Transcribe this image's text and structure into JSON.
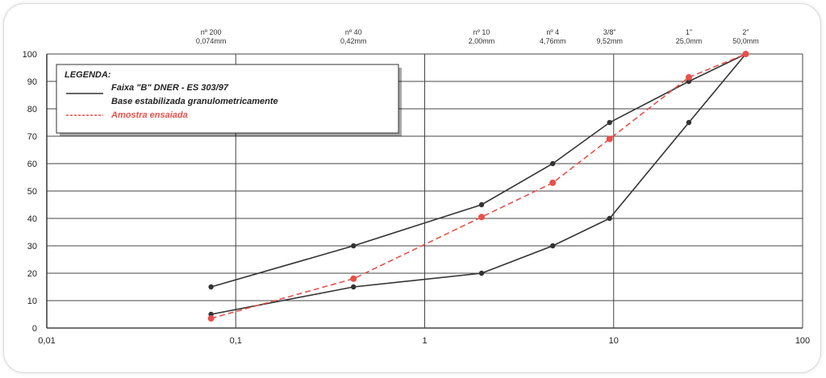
{
  "chart_data": {
    "type": "line",
    "x_scale": "log",
    "xlim": [
      0.01,
      100
    ],
    "ylim": [
      0,
      100
    ],
    "grid": true,
    "legend_position": "top-left",
    "x_tick_labels": [
      "0,01",
      "0,1",
      "1",
      "10",
      "100"
    ],
    "x_tick_values": [
      0.01,
      0.1,
      1,
      10,
      100
    ],
    "y_ticks": [
      0,
      10,
      20,
      30,
      40,
      50,
      60,
      70,
      80,
      90,
      100
    ],
    "sieves": [
      {
        "x": 0.074,
        "line1": "nº 200",
        "line2": "0,074mm"
      },
      {
        "x": 0.42,
        "line1": "nº 40",
        "line2": "0,42mm"
      },
      {
        "x": 2.0,
        "line1": "nº 10",
        "line2": "2,00mm"
      },
      {
        "x": 4.76,
        "line1": "nº 4",
        "line2": "4,76mm"
      },
      {
        "x": 9.52,
        "line1": "3/8\"",
        "line2": "9,52mm"
      },
      {
        "x": 25.0,
        "line1": "1\"",
        "line2": "25,0mm"
      },
      {
        "x": 50.0,
        "line1": "2\"",
        "line2": "50,0mm"
      }
    ],
    "legend_title": "LEGENDA:",
    "legend_entries": [
      {
        "label": "Faixa \"B\" DNER - ES 303/97",
        "color": "#333333",
        "style": "solid"
      },
      {
        "label": "Base estabilizada granulometricamente",
        "color": "#333333",
        "style": "none"
      },
      {
        "label": "Amostra ensaiada",
        "color": "#e8504a",
        "style": "dashed"
      }
    ],
    "series": [
      {
        "role": "faixa-upper",
        "color": "#333333",
        "dash": "solid",
        "x": [
          0.074,
          0.42,
          2.0,
          4.76,
          9.52,
          25.0,
          50.0
        ],
        "values": [
          15,
          30,
          45,
          60,
          75,
          90,
          100
        ]
      },
      {
        "role": "faixa-lower",
        "color": "#333333",
        "dash": "solid",
        "x": [
          0.074,
          0.42,
          2.0,
          4.76,
          9.52,
          25.0,
          50.0
        ],
        "values": [
          5,
          15,
          20,
          30,
          40,
          75,
          100
        ]
      },
      {
        "role": "amostra",
        "color": "#e8504a",
        "dash": "dashed",
        "x": [
          0.074,
          0.42,
          2.0,
          4.76,
          9.52,
          25.0,
          50.0
        ],
        "values": [
          3.5,
          18,
          40.5,
          53,
          69,
          91.5,
          100
        ]
      }
    ]
  }
}
